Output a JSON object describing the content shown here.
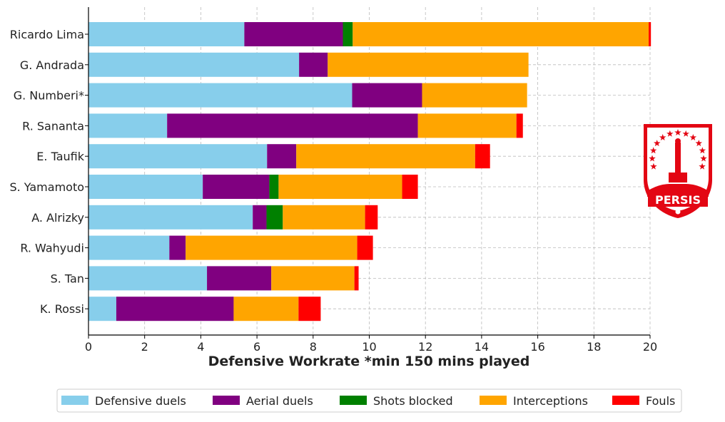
{
  "chart_data": {
    "type": "bar",
    "orientation": "horizontal",
    "stacked": true,
    "title": "",
    "xlabel": "Defensive Workrate *min 150 mins played",
    "ylabel": "",
    "xlim": [
      0,
      20
    ],
    "xticks": [
      0,
      2,
      4,
      6,
      8,
      10,
      12,
      14,
      16,
      18,
      20
    ],
    "grid": true,
    "legend_position": "bottom",
    "categories": [
      "Ricardo Lima",
      "G. Andrada",
      "G. Numberi*",
      "R. Sananta",
      "E. Taufik",
      "S. Yamamoto",
      "A. Alrizky",
      "R. Wahyudi",
      "S. Tan",
      "K. Rossi"
    ],
    "series": [
      {
        "name": "Defensive duels",
        "color": "#87CEEB",
        "values": [
          5.55,
          7.5,
          9.39,
          2.8,
          6.36,
          4.07,
          5.85,
          2.88,
          4.22,
          0.99
        ]
      },
      {
        "name": "Aerial duels",
        "color": "#800080",
        "values": [
          3.51,
          1.02,
          2.49,
          8.93,
          1.04,
          2.37,
          0.49,
          0.58,
          2.29,
          4.18
        ]
      },
      {
        "name": "Shots blocked",
        "color": "#008000",
        "values": [
          0.35,
          0,
          0,
          0,
          0,
          0.33,
          0.58,
          0,
          0,
          0
        ]
      },
      {
        "name": "Interceptions",
        "color": "#FFA500",
        "values": [
          10.54,
          7.15,
          3.74,
          3.51,
          6.37,
          4.4,
          2.93,
          6.11,
          2.96,
          2.31
        ]
      },
      {
        "name": "Fouls",
        "color": "#FF0000",
        "values": [
          0.08,
          0,
          0,
          0.23,
          0.53,
          0.56,
          0.45,
          0.56,
          0.15,
          0.79
        ]
      }
    ]
  },
  "logo": {
    "text": "PERSIS",
    "color": "#E30613"
  }
}
